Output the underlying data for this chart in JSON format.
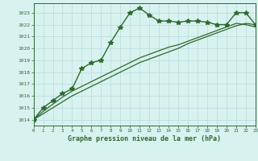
{
  "title": "Graphe pression niveau de la mer (hPa)",
  "bg_color": "#d8f2f0",
  "grid_color": "#b8dcd8",
  "line_color": "#2d6a2d",
  "xlim": [
    0,
    23
  ],
  "ylim": [
    1013.5,
    1023.8
  ],
  "yticks": [
    1014,
    1015,
    1016,
    1017,
    1018,
    1019,
    1020,
    1021,
    1022,
    1023
  ],
  "xticks": [
    0,
    1,
    2,
    3,
    4,
    5,
    6,
    7,
    8,
    9,
    10,
    11,
    12,
    13,
    14,
    15,
    16,
    17,
    18,
    19,
    20,
    21,
    22,
    23
  ],
  "series": [
    {
      "x": [
        0,
        1,
        2,
        3,
        4,
        5,
        6,
        7,
        8,
        9,
        10,
        11,
        12,
        13,
        14,
        15,
        16,
        17,
        18,
        19,
        20,
        21,
        22,
        23
      ],
      "y": [
        1014.0,
        1015.0,
        1015.6,
        1016.2,
        1016.6,
        1018.3,
        1018.8,
        1019.0,
        1020.5,
        1021.8,
        1023.0,
        1023.4,
        1022.8,
        1022.3,
        1022.3,
        1022.2,
        1022.3,
        1022.3,
        1022.2,
        1022.0,
        1022.0,
        1023.0,
        1023.0,
        1022.0
      ],
      "marker": "*",
      "linestyle": "-",
      "linewidth": 1.0,
      "markersize": 4
    },
    {
      "x": [
        0,
        1,
        2,
        3,
        4,
        5,
        6,
        7,
        8,
        9,
        10,
        11,
        12,
        13,
        14,
        15,
        16,
        17,
        18,
        19,
        20,
        21,
        22,
        23
      ],
      "y": [
        1014.0,
        1014.5,
        1015.0,
        1015.5,
        1016.0,
        1016.4,
        1016.8,
        1017.2,
        1017.6,
        1018.0,
        1018.4,
        1018.8,
        1019.1,
        1019.4,
        1019.7,
        1020.0,
        1020.4,
        1020.7,
        1021.0,
        1021.3,
        1021.6,
        1021.9,
        1022.1,
        1022.0
      ],
      "marker": null,
      "linestyle": "-",
      "linewidth": 0.9,
      "markersize": 0
    },
    {
      "x": [
        0,
        1,
        2,
        3,
        4,
        5,
        6,
        7,
        8,
        9,
        10,
        11,
        12,
        13,
        14,
        15,
        16,
        17,
        18,
        19,
        20,
        21,
        22,
        23
      ],
      "y": [
        1014.0,
        1014.7,
        1015.3,
        1015.9,
        1016.4,
        1016.8,
        1017.2,
        1017.6,
        1018.0,
        1018.4,
        1018.8,
        1019.2,
        1019.5,
        1019.8,
        1020.1,
        1020.3,
        1020.6,
        1020.9,
        1021.2,
        1021.5,
        1021.8,
        1022.1,
        1022.0,
        1021.8
      ],
      "marker": null,
      "linestyle": "-",
      "linewidth": 0.9,
      "markersize": 0
    }
  ]
}
